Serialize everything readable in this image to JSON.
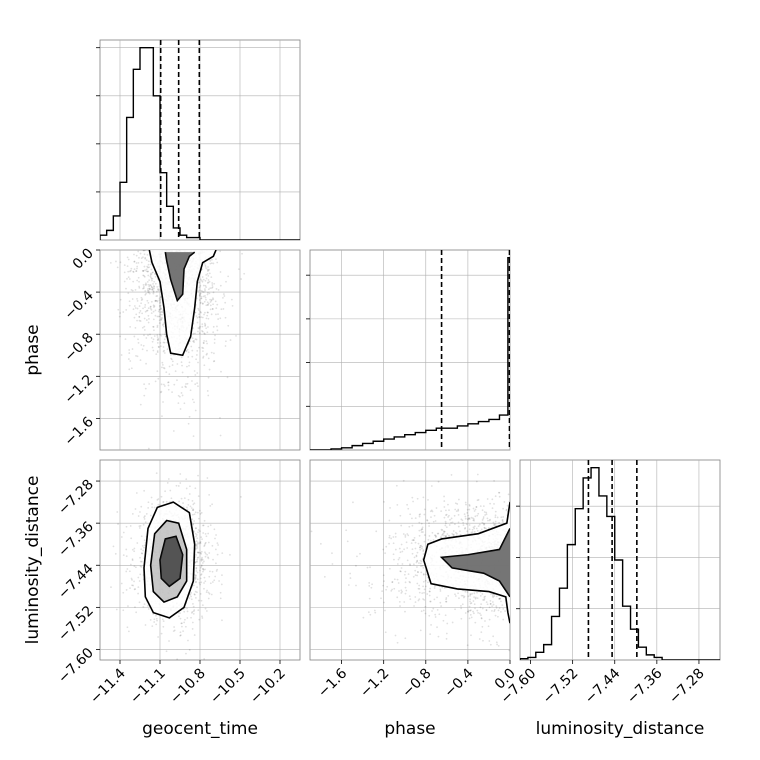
{
  "chart_data": {
    "type": "corner",
    "parameters": [
      {
        "name": "geocent_time",
        "label": "geocent_time",
        "range": [
          -11.55,
          -10.05
        ],
        "ticks": [
          -11.4,
          -11.1,
          -10.8,
          -10.5,
          -10.2
        ],
        "tick_labels": [
          "−11.4",
          "−11.1",
          "−10.8",
          "−10.5",
          "−10.2"
        ],
        "quantiles": [
          -11.095,
          -10.96,
          -10.805
        ],
        "hist": {
          "edges": [
            -11.55,
            -11.5,
            -11.45,
            -11.4,
            -11.35,
            -11.3,
            -11.25,
            -11.2,
            -11.15,
            -11.1,
            -11.05,
            -11.0,
            -10.95,
            -10.9,
            -10.85,
            -10.8,
            -10.75,
            -10.7,
            -10.65,
            -10.6,
            -10.55,
            -10.5,
            -10.45,
            -10.4,
            -10.35,
            -10.3,
            -10.25,
            -10.2,
            -10.15,
            -10.1,
            -10.05
          ],
          "counts": [
            2,
            4,
            10,
            24,
            51,
            71,
            80,
            80,
            60,
            28,
            14,
            5,
            2,
            1,
            1,
            0,
            0,
            0,
            0,
            0,
            0,
            0,
            0,
            0,
            0,
            0,
            0,
            0,
            0,
            0
          ]
        }
      },
      {
        "name": "phase",
        "label": "phase",
        "range": [
          -1.9,
          0.0
        ],
        "ticks": [
          -1.6,
          -1.2,
          -0.8,
          -0.4,
          0.0
        ],
        "tick_labels": [
          "−1.6",
          "−1.2",
          "−0.8",
          "−0.4",
          "0.0"
        ],
        "quantiles": [
          -0.65,
          -0.005,
          0.0
        ],
        "hist": {
          "edges": [
            -1.9,
            -1.8,
            -1.7,
            -1.6,
            -1.5,
            -1.4,
            -1.3,
            -1.2,
            -1.1,
            -1.0,
            -0.9,
            -0.8,
            -0.7,
            -0.6,
            -0.5,
            -0.4,
            -0.3,
            -0.2,
            -0.1,
            -0.02,
            0.0
          ],
          "counts": [
            0,
            0,
            0.5,
            1,
            2,
            3,
            4,
            5,
            6,
            7,
            8,
            9,
            10,
            10,
            11,
            12,
            13,
            14,
            16,
            88
          ]
        }
      },
      {
        "name": "luminosity_distance",
        "label": "luminosity_distance",
        "range": [
          -7.62,
          -7.24
        ],
        "ticks": [
          -7.6,
          -7.52,
          -7.44,
          -7.36,
          -7.28
        ],
        "tick_labels": [
          "−7.60",
          "−7.52",
          "−7.44",
          "−7.36",
          "−7.28"
        ],
        "quantiles": [
          -7.49,
          -7.445,
          -7.398
        ],
        "hist": {
          "edges": [
            -7.62,
            -7.605,
            -7.59,
            -7.575,
            -7.56,
            -7.545,
            -7.53,
            -7.515,
            -7.5,
            -7.485,
            -7.47,
            -7.455,
            -7.44,
            -7.425,
            -7.41,
            -7.395,
            -7.38,
            -7.365,
            -7.35,
            -7.335,
            -7.32,
            -7.305,
            -7.29,
            -7.275,
            -7.26,
            -7.24
          ],
          "counts": [
            0.5,
            1,
            3,
            6,
            17,
            28,
            45,
            59,
            71,
            75,
            64,
            56,
            39,
            21,
            12,
            5,
            2,
            1,
            0,
            0,
            0,
            0,
            0,
            0,
            0
          ]
        }
      }
    ],
    "pairs": [
      {
        "x": "geocent_time",
        "y": "phase",
        "scatter_center": [
          -10.98,
          -0.7
        ],
        "scatter_spread": [
          0.17,
          0.45
        ],
        "contours": [
          [
            [
              -11.18,
              0.0
            ],
            [
              -11.16,
              -0.12
            ],
            [
              -11.1,
              -0.3
            ],
            [
              -11.07,
              -0.55
            ],
            [
              -11.05,
              -0.8
            ],
            [
              -11.02,
              -0.98
            ],
            [
              -10.93,
              -1.0
            ],
            [
              -10.87,
              -0.82
            ],
            [
              -10.84,
              -0.55
            ],
            [
              -10.82,
              -0.3
            ],
            [
              -10.78,
              -0.12
            ],
            [
              -10.7,
              -0.06
            ],
            [
              -10.68,
              0.0
            ]
          ],
          [
            [
              -11.06,
              -0.02
            ],
            [
              -11.05,
              -0.1
            ],
            [
              -11.02,
              -0.28
            ],
            [
              -10.97,
              -0.48
            ],
            [
              -10.93,
              -0.42
            ],
            [
              -10.92,
              -0.18
            ],
            [
              -10.88,
              -0.06
            ],
            [
              -10.84,
              -0.02
            ]
          ]
        ]
      },
      {
        "x": "geocent_time",
        "y": "luminosity_distance",
        "scatter_center": [
          -11.0,
          -7.43
        ],
        "scatter_spread": [
          0.14,
          0.055
        ],
        "contours": [
          [
            [
              -11.22,
              -7.445
            ],
            [
              -11.19,
              -7.37
            ],
            [
              -11.12,
              -7.33
            ],
            [
              -11.0,
              -7.32
            ],
            [
              -10.88,
              -7.34
            ],
            [
              -10.84,
              -7.4
            ],
            [
              -10.85,
              -7.47
            ],
            [
              -10.92,
              -7.52
            ],
            [
              -11.03,
              -7.54
            ],
            [
              -11.15,
              -7.53
            ],
            [
              -11.21,
              -7.5
            ]
          ],
          [
            [
              -11.17,
              -7.44
            ],
            [
              -11.14,
              -7.38
            ],
            [
              -11.05,
              -7.355
            ],
            [
              -10.96,
              -7.36
            ],
            [
              -10.9,
              -7.41
            ],
            [
              -10.9,
              -7.47
            ],
            [
              -10.97,
              -7.5
            ],
            [
              -11.07,
              -7.51
            ],
            [
              -11.15,
              -7.49
            ]
          ],
          [
            [
              -11.1,
              -7.43
            ],
            [
              -11.06,
              -7.39
            ],
            [
              -10.98,
              -7.385
            ],
            [
              -10.93,
              -7.42
            ],
            [
              -10.95,
              -7.465
            ],
            [
              -11.03,
              -7.48
            ],
            [
              -11.09,
              -7.465
            ]
          ]
        ]
      },
      {
        "x": "phase",
        "y": "luminosity_distance",
        "scatter_center": [
          -0.55,
          -7.43
        ],
        "scatter_spread": [
          0.45,
          0.055
        ],
        "contours": [
          [
            [
              0.0,
              -7.32
            ],
            [
              -0.03,
              -7.36
            ],
            [
              -0.3,
              -7.38
            ],
            [
              -0.65,
              -7.39
            ],
            [
              -0.78,
              -7.4
            ],
            [
              -0.82,
              -7.43
            ],
            [
              -0.75,
              -7.475
            ],
            [
              -0.5,
              -7.485
            ],
            [
              -0.2,
              -7.49
            ],
            [
              -0.04,
              -7.5
            ],
            [
              -0.02,
              -7.53
            ],
            [
              0.0,
              -7.55
            ]
          ],
          [
            [
              0.0,
              -7.37
            ],
            [
              -0.1,
              -7.41
            ],
            [
              -0.4,
              -7.42
            ],
            [
              -0.65,
              -7.425
            ],
            [
              -0.55,
              -7.445
            ],
            [
              -0.25,
              -7.455
            ],
            [
              -0.1,
              -7.47
            ],
            [
              0.0,
              -7.5
            ]
          ]
        ]
      }
    ]
  }
}
